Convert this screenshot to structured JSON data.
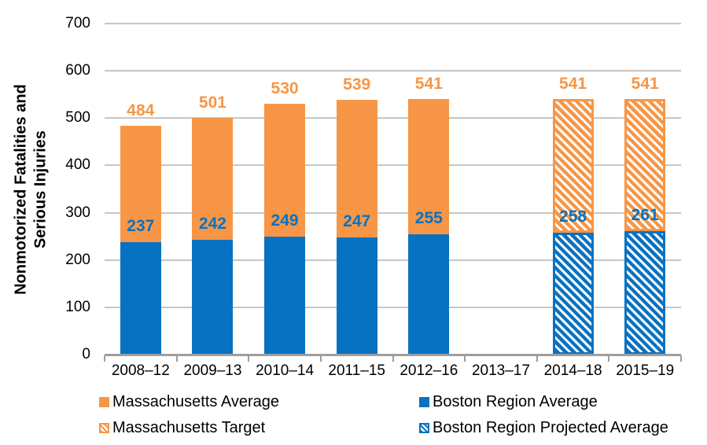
{
  "colors": {
    "orange": "#F79646",
    "blue": "#0872C2",
    "gridline": "#C6C6C6",
    "axis_line": "#9E9E9E",
    "text": "#000000",
    "background": "#FFFFFF"
  },
  "chart_data": {
    "type": "bar",
    "stacked": true,
    "title": "",
    "xlabel": "",
    "ylabel": "Nonmotorized Fatalities and Serious Injuries",
    "ylabel_lines": [
      "Nonmotorized Fatalities and",
      "Serious Injuries"
    ],
    "ylim": [
      0,
      700
    ],
    "yticks": [
      0,
      100,
      200,
      300,
      400,
      500,
      600,
      700
    ],
    "grid": true,
    "legend_position": "bottom",
    "categories": [
      "2008–12",
      "2009–13",
      "2010–14",
      "2011–15",
      "2012–16",
      "2013–17",
      "2014–18",
      "2015–19"
    ],
    "series": [
      {
        "name": "Massachusetts Average",
        "pattern": "solid",
        "color": "#F79646",
        "values": [
          484,
          501,
          530,
          539,
          541,
          null,
          null,
          null
        ]
      },
      {
        "name": "Boston Region Average",
        "pattern": "solid",
        "color": "#0872C2",
        "values": [
          237,
          242,
          249,
          247,
          255,
          null,
          null,
          null
        ]
      },
      {
        "name": "Massachusetts Target",
        "pattern": "diagonal-hatch",
        "color": "#F79646",
        "values": [
          null,
          null,
          null,
          null,
          null,
          null,
          541,
          541
        ]
      },
      {
        "name": "Boston Region Projected Average",
        "pattern": "diagonal-hatch",
        "color": "#0872C2",
        "values": [
          null,
          null,
          null,
          null,
          null,
          null,
          258,
          261
        ]
      }
    ],
    "bars": [
      {
        "category": "2008–12",
        "massachusetts": 484,
        "boston": 237,
        "projected": false
      },
      {
        "category": "2009–13",
        "massachusetts": 501,
        "boston": 242,
        "projected": false
      },
      {
        "category": "2010–14",
        "massachusetts": 530,
        "boston": 249,
        "projected": false
      },
      {
        "category": "2011–15",
        "massachusetts": 539,
        "boston": 247,
        "projected": false
      },
      {
        "category": "2012–16",
        "massachusetts": 541,
        "boston": 255,
        "projected": false
      },
      {
        "category": "2013–17",
        "massachusetts": null,
        "boston": null,
        "projected": null
      },
      {
        "category": "2014–18",
        "massachusetts": 541,
        "boston": 258,
        "projected": true
      },
      {
        "category": "2015–19",
        "massachusetts": 541,
        "boston": 261,
        "projected": true
      }
    ]
  },
  "legend": {
    "items": [
      {
        "label": "Massachusetts Average",
        "swatch": "orange-solid"
      },
      {
        "label": "Boston Region Average",
        "swatch": "blue-solid"
      },
      {
        "label": "Massachusetts Target",
        "swatch": "orange-hatch"
      },
      {
        "label": "Boston Region Projected Average",
        "swatch": "blue-hatch"
      }
    ]
  }
}
